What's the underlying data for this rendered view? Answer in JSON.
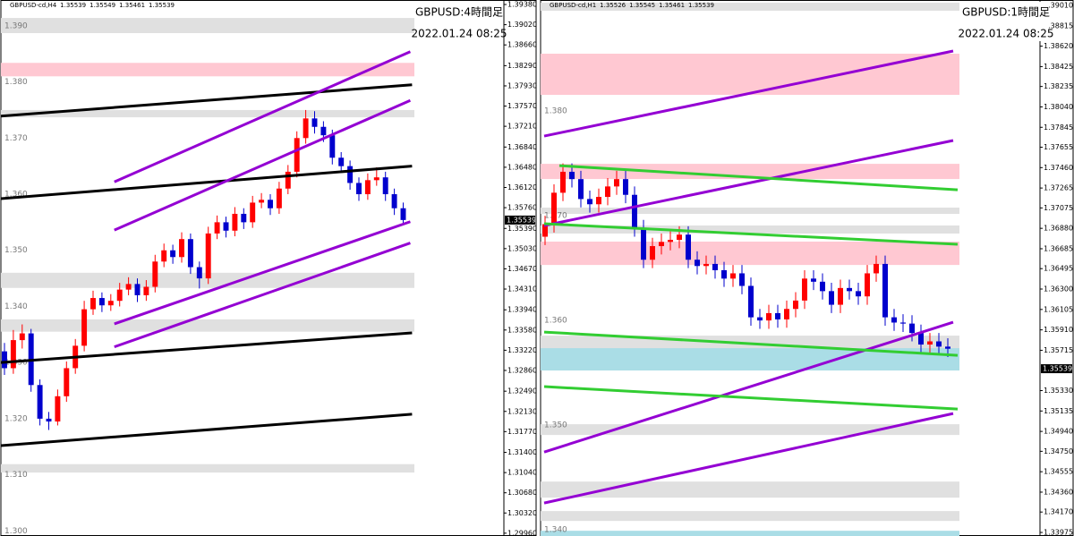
{
  "chart_data": [
    {
      "type": "candlestick",
      "symbol": "GBPUSD-cd,H4",
      "header_prices": [
        1.35539,
        1.35549,
        1.35461,
        1.35539
      ],
      "title": "GBPUSD:4時間足",
      "date": "2022.01.24 08:25",
      "ylim": [
        1.2991,
        1.3946
      ],
      "yticks": [
        {
          "value": 1.3938,
          "label": "1.39380"
        },
        {
          "value": 1.3902,
          "label": "1.39020"
        },
        {
          "value": 1.3866,
          "label": "1.38660"
        },
        {
          "value": 1.3829,
          "label": "1.38290"
        },
        {
          "value": 1.3793,
          "label": "1.37930"
        },
        {
          "value": 1.3757,
          "label": "1.37570"
        },
        {
          "value": 1.3721,
          "label": "1.37210"
        },
        {
          "value": 1.3684,
          "label": "1.36840"
        },
        {
          "value": 1.3648,
          "label": "1.36480"
        },
        {
          "value": 1.3612,
          "label": "1.36120"
        },
        {
          "value": 1.3576,
          "label": "1.35760"
        },
        {
          "value": 1.3539,
          "label": "1.35390"
        },
        {
          "value": 1.3503,
          "label": "1.35030"
        },
        {
          "value": 1.3467,
          "label": "1.34670"
        },
        {
          "value": 1.3431,
          "label": "1.34310"
        },
        {
          "value": 1.3394,
          "label": "1.33940"
        },
        {
          "value": 1.3358,
          "label": "1.33580"
        },
        {
          "value": 1.3322,
          "label": "1.33220"
        },
        {
          "value": 1.3286,
          "label": "1.32860"
        },
        {
          "value": 1.3249,
          "label": "1.32490"
        },
        {
          "value": 1.3213,
          "label": "1.32130"
        },
        {
          "value": 1.3177,
          "label": "1.31770"
        },
        {
          "value": 1.314,
          "label": "1.31400"
        },
        {
          "value": 1.3104,
          "label": "1.31040"
        },
        {
          "value": 1.3068,
          "label": "1.30680"
        },
        {
          "value": 1.3032,
          "label": "1.30320"
        },
        {
          "value": 1.2996,
          "label": "1.29960"
        }
      ],
      "levels": [
        {
          "value": 1.39,
          "label": "1.390"
        },
        {
          "value": 1.38,
          "label": "1.380"
        },
        {
          "value": 1.37,
          "label": "1.370"
        },
        {
          "value": 1.36,
          "label": "1.360"
        },
        {
          "value": 1.35,
          "label": "1.350"
        },
        {
          "value": 1.34,
          "label": "1.340"
        },
        {
          "value": 1.33,
          "label": "1.330"
        },
        {
          "value": 1.32,
          "label": "1.320"
        },
        {
          "value": 1.31,
          "label": "1.310"
        },
        {
          "value": 1.3,
          "label": "1.300"
        }
      ],
      "last_price": 1.35539,
      "up_color": "#ff0000",
      "down_color": "#0000cd",
      "ohlc": [
        [
          1.332,
          1.3335,
          1.3278,
          1.329
        ],
        [
          1.329,
          1.3358,
          1.328,
          1.334
        ],
        [
          1.334,
          1.3368,
          1.3325,
          1.3352
        ],
        [
          1.3352,
          1.336,
          1.3248,
          1.326
        ],
        [
          1.326,
          1.327,
          1.3188,
          1.32
        ],
        [
          1.32,
          1.3212,
          1.318,
          1.3195
        ],
        [
          1.3195,
          1.3252,
          1.3188,
          1.324
        ],
        [
          1.324,
          1.3302,
          1.323,
          1.329
        ],
        [
          1.329,
          1.3342,
          1.328,
          1.333
        ],
        [
          1.333,
          1.341,
          1.332,
          1.3395
        ],
        [
          1.3395,
          1.3428,
          1.3385,
          1.3415
        ],
        [
          1.3415,
          1.3425,
          1.339,
          1.3402
        ],
        [
          1.3402,
          1.3422,
          1.3392,
          1.341
        ],
        [
          1.341,
          1.3442,
          1.34,
          1.343
        ],
        [
          1.343,
          1.3452,
          1.342,
          1.344
        ],
        [
          1.344,
          1.345,
          1.3408,
          1.342
        ],
        [
          1.342,
          1.3447,
          1.341,
          1.3435
        ],
        [
          1.3435,
          1.3492,
          1.3425,
          1.348
        ],
        [
          1.348,
          1.3512,
          1.347,
          1.35
        ],
        [
          1.35,
          1.351,
          1.3476,
          1.3488
        ],
        [
          1.3488,
          1.3532,
          1.3478,
          1.352
        ],
        [
          1.352,
          1.353,
          1.3458,
          1.347
        ],
        [
          1.347,
          1.348,
          1.3432,
          1.345
        ],
        [
          1.345,
          1.3542,
          1.344,
          1.353
        ],
        [
          1.353,
          1.3562,
          1.352,
          1.355
        ],
        [
          1.355,
          1.356,
          1.3523,
          1.3535
        ],
        [
          1.3535,
          1.3577,
          1.3525,
          1.3565
        ],
        [
          1.3565,
          1.3575,
          1.3538,
          1.355
        ],
        [
          1.355,
          1.3597,
          1.354,
          1.3585
        ],
        [
          1.3585,
          1.3602,
          1.3575,
          1.359
        ],
        [
          1.359,
          1.36,
          1.3563,
          1.3575
        ],
        [
          1.3575,
          1.3622,
          1.3565,
          1.361
        ],
        [
          1.361,
          1.3652,
          1.36,
          1.364
        ],
        [
          1.364,
          1.3712,
          1.363,
          1.37
        ],
        [
          1.37,
          1.375,
          1.369,
          1.3735
        ],
        [
          1.3735,
          1.3748,
          1.3708,
          1.372
        ],
        [
          1.372,
          1.373,
          1.3693,
          1.3705
        ],
        [
          1.3705,
          1.3715,
          1.3653,
          1.3665
        ],
        [
          1.3665,
          1.3675,
          1.3638,
          1.365
        ],
        [
          1.365,
          1.366,
          1.3608,
          1.362
        ],
        [
          1.362,
          1.363,
          1.3588,
          1.36
        ],
        [
          1.36,
          1.3637,
          1.359,
          1.3625
        ],
        [
          1.3625,
          1.3648,
          1.3615,
          1.363
        ],
        [
          1.363,
          1.364,
          1.3588,
          1.36
        ],
        [
          1.36,
          1.361,
          1.3563,
          1.3575
        ],
        [
          1.3575,
          1.3585,
          1.3545,
          1.3554
        ]
      ],
      "zones": [
        {
          "color": "#e0e0e0",
          "y": [
            1.3887,
            1.3914
          ]
        },
        {
          "color": "#ffc8d2",
          "y": [
            1.381,
            1.3834
          ]
        },
        {
          "color": "#e0e0e0",
          "y": [
            1.3737,
            1.375
          ]
        },
        {
          "color": "#e0e0e0",
          "y": [
            1.3433,
            1.346
          ]
        },
        {
          "color": "#e0e0e0",
          "y": [
            1.3355,
            1.3377
          ]
        },
        {
          "color": "#e0e0e0",
          "y": [
            1.3104,
            1.3119
          ]
        }
      ],
      "trendlines": [
        {
          "color": "#000000",
          "x": [
            -0.5,
            46
          ],
          "y": [
            1.3739,
            1.3795
          ]
        },
        {
          "color": "#000000",
          "x": [
            -0.5,
            46
          ],
          "y": [
            1.3592,
            1.365
          ]
        },
        {
          "color": "#000000",
          "x": [
            -0.5,
            46
          ],
          "y": [
            1.33,
            1.3353
          ]
        },
        {
          "color": "#000000",
          "x": [
            -0.5,
            46
          ],
          "y": [
            1.3152,
            1.3208
          ]
        },
        {
          "color": "#9400d3",
          "x": [
            12.4,
            45.8
          ],
          "y": [
            1.3622,
            1.3854
          ]
        },
        {
          "color": "#9400d3",
          "x": [
            12.4,
            45.8
          ],
          "y": [
            1.3536,
            1.3767
          ]
        },
        {
          "color": "#9400d3",
          "x": [
            12.4,
            45.8
          ],
          "y": [
            1.3369,
            1.3551
          ]
        },
        {
          "color": "#9400d3",
          "x": [
            12.4,
            45.8
          ],
          "y": [
            1.3328,
            1.3513
          ]
        }
      ]
    },
    {
      "type": "candlestick",
      "symbol": "GBPUSD-cd,H1",
      "header_prices": [
        1.35526,
        1.35545,
        1.35461,
        1.35539
      ],
      "title": "GBPUSD:1時間足",
      "date": "2022.01.24 08:25",
      "ylim": [
        1.33941,
        1.39061
      ],
      "yticks": [
        {
          "value": 1.3901,
          "label": "1.39010"
        },
        1.38815,
        {
          "value": 1.3862,
          "label": "1.38620"
        },
        1.38425,
        1.38235,
        {
          "value": 1.3804,
          "label": "1.38040"
        },
        1.37845,
        1.37655,
        {
          "value": 1.3746,
          "label": "1.37460"
        },
        1.37265,
        1.37075,
        {
          "value": 1.3688,
          "label": "1.36880"
        },
        1.36685,
        1.36495,
        {
          "value": 1.363,
          "label": "1.36300"
        },
        1.36105,
        {
          "value": 1.3591,
          "label": "1.35910"
        },
        1.35715,
        {
          "value": 1.3533,
          "label": "1.35330"
        },
        1.35135,
        {
          "value": 1.3494,
          "label": "1.34940"
        },
        {
          "value": 1.3475,
          "label": "1.34750"
        },
        1.34555,
        {
          "value": 1.3436,
          "label": "1.34360"
        },
        {
          "value": 1.3417,
          "label": "1.34170"
        },
        1.33975
      ],
      "levels": [
        {
          "value": 1.38,
          "label": "1.380"
        },
        {
          "value": 1.37,
          "label": "1.370"
        },
        {
          "value": 1.36,
          "label": "1.360"
        },
        {
          "value": 1.35,
          "label": "1.350"
        },
        {
          "value": 1.34,
          "label": "1.340"
        }
      ],
      "last_price": 1.35539,
      "up_color": "#ff0000",
      "down_color": "#0000cd",
      "ohlc": [
        [
          1.368,
          1.37,
          1.3672,
          1.3692
        ],
        [
          1.3692,
          1.373,
          1.3684,
          1.3722
        ],
        [
          1.3722,
          1.375,
          1.3714,
          1.3742
        ],
        [
          1.3742,
          1.375,
          1.3727,
          1.3735
        ],
        [
          1.3735,
          1.3743,
          1.3708,
          1.3716
        ],
        [
          1.3716,
          1.3724,
          1.3703,
          1.3711
        ],
        [
          1.3711,
          1.3726,
          1.3703,
          1.3718
        ],
        [
          1.3718,
          1.3736,
          1.371,
          1.3728
        ],
        [
          1.3728,
          1.3743,
          1.372,
          1.3735
        ],
        [
          1.3735,
          1.3743,
          1.3712,
          1.372
        ],
        [
          1.372,
          1.3728,
          1.368,
          1.3688
        ],
        [
          1.3688,
          1.3696,
          1.365,
          1.3658
        ],
        [
          1.3658,
          1.3679,
          1.365,
          1.3671
        ],
        [
          1.3671,
          1.3683,
          1.3663,
          1.3675
        ],
        [
          1.3675,
          1.3685,
          1.3667,
          1.3677
        ],
        [
          1.3677,
          1.369,
          1.3669,
          1.3682
        ],
        [
          1.3682,
          1.369,
          1.365,
          1.3658
        ],
        [
          1.3658,
          1.3666,
          1.3644,
          1.3652
        ],
        [
          1.3652,
          1.3662,
          1.3644,
          1.3654
        ],
        [
          1.3654,
          1.3662,
          1.364,
          1.3648
        ],
        [
          1.3648,
          1.3656,
          1.3632,
          1.364
        ],
        [
          1.364,
          1.3653,
          1.3632,
          1.3645
        ],
        [
          1.3645,
          1.3653,
          1.3625,
          1.3633
        ],
        [
          1.3633,
          1.3641,
          1.3595,
          1.3603
        ],
        [
          1.3603,
          1.3611,
          1.3592,
          1.36
        ],
        [
          1.36,
          1.3615,
          1.3592,
          1.3607
        ],
        [
          1.3607,
          1.3615,
          1.3593,
          1.3601
        ],
        [
          1.3601,
          1.3619,
          1.3593,
          1.3611
        ],
        [
          1.3611,
          1.3627,
          1.3603,
          1.3619
        ],
        [
          1.3619,
          1.3648,
          1.3611,
          1.364
        ],
        [
          1.364,
          1.3648,
          1.3629,
          1.3637
        ],
        [
          1.3637,
          1.3645,
          1.362,
          1.3628
        ],
        [
          1.3628,
          1.3636,
          1.3607,
          1.3615
        ],
        [
          1.3615,
          1.3639,
          1.3607,
          1.3631
        ],
        [
          1.3631,
          1.3639,
          1.362,
          1.3628
        ],
        [
          1.3628,
          1.3636,
          1.3615,
          1.3623
        ],
        [
          1.3623,
          1.3653,
          1.3615,
          1.3645
        ],
        [
          1.3645,
          1.3662,
          1.3637,
          1.3654
        ],
        [
          1.3654,
          1.3662,
          1.3595,
          1.3603
        ],
        [
          1.3603,
          1.3611,
          1.359,
          1.3598
        ],
        [
          1.3598,
          1.3606,
          1.3589,
          1.3597
        ],
        [
          1.3597,
          1.3605,
          1.358,
          1.3588
        ],
        [
          1.3588,
          1.3596,
          1.3569,
          1.3577
        ],
        [
          1.3577,
          1.3588,
          1.3569,
          1.358
        ],
        [
          1.358,
          1.3588,
          1.3567,
          1.3575
        ],
        [
          1.3575,
          1.3583,
          1.3565,
          1.3573
        ]
      ],
      "zones": [
        {
          "color": "#e0e0e0",
          "y": [
            1.38958,
            1.39035
          ]
        },
        {
          "color": "#ffc8d2",
          "y": [
            1.38155,
            1.38548
          ]
        },
        {
          "color": "#ffc8d2",
          "y": [
            1.37351,
            1.37496
          ]
        },
        {
          "color": "#e0e0e0",
          "y": [
            1.37018,
            1.37078
          ]
        },
        {
          "color": "#e0e0e0",
          "y": [
            1.3683,
            1.36907
          ]
        },
        {
          "color": "#ffc8d2",
          "y": [
            1.3653,
            1.36753
          ]
        },
        {
          "color": "#e0e0e0",
          "y": [
            1.35727,
            1.35855
          ]
        },
        {
          "color": "#aadde6",
          "y": [
            1.35522,
            1.35735
          ]
        },
        {
          "color": "#e0e0e0",
          "y": [
            1.34906,
            1.35009
          ]
        },
        {
          "color": "#e0e0e0",
          "y": [
            1.34307,
            1.34461
          ]
        },
        {
          "color": "#e0e0e0",
          "y": [
            1.34085,
            1.34179
          ]
        },
        {
          "color": "#aadde6",
          "y": [
            1.33941,
            1.33991
          ]
        }
      ],
      "trendlines": [
        {
          "color": "#9400d3",
          "x": [
            -0.1,
            45.6
          ],
          "y": [
            1.37761,
            1.38574
          ]
        },
        {
          "color": "#9400d3",
          "x": [
            -0.1,
            45.6
          ],
          "y": [
            1.36906,
            1.37719
          ]
        },
        {
          "color": "#9400d3",
          "x": [
            -0.1,
            45.6
          ],
          "y": [
            1.34743,
            1.35983
          ]
        },
        {
          "color": "#9400d3",
          "x": [
            -0.1,
            45.6
          ],
          "y": [
            1.34256,
            1.35111
          ]
        },
        {
          "color": "#32cd32",
          "x": [
            1.6,
            46.1
          ],
          "y": [
            1.37479,
            1.37248
          ]
        },
        {
          "color": "#32cd32",
          "x": [
            -0.1,
            46.1
          ],
          "y": [
            1.36924,
            1.36727
          ]
        },
        {
          "color": "#32cd32",
          "x": [
            -0.1,
            46.1
          ],
          "y": [
            1.35889,
            1.35667
          ]
        },
        {
          "color": "#32cd32",
          "x": [
            -0.1,
            46.1
          ],
          "y": [
            1.35368,
            1.35154
          ]
        }
      ]
    }
  ]
}
